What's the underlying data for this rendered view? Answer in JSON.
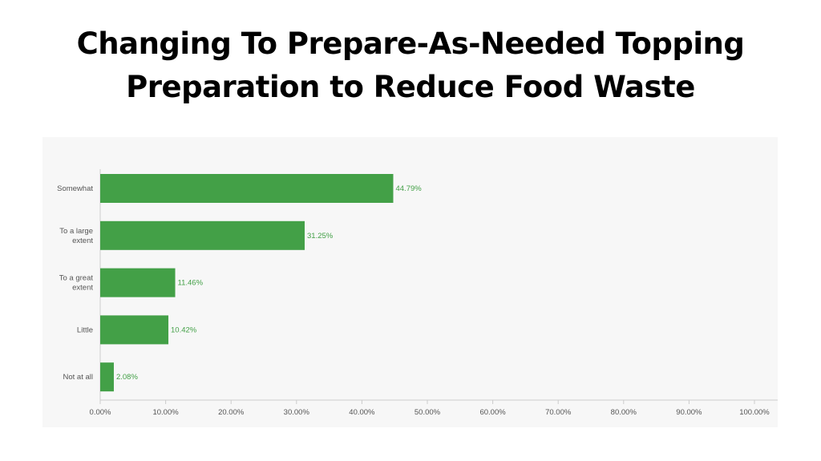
{
  "title": {
    "line1": "Changing To Prepare-As-Needed Topping",
    "line2": "Preparation to Reduce Food Waste"
  },
  "colors": {
    "bar": "#43a047",
    "value_label": "#43a047",
    "axis_line": "#cccccc",
    "panel_bg": "#f7f7f7"
  },
  "chart_data": {
    "type": "bar",
    "orientation": "horizontal",
    "categories": [
      [
        "Somewhat"
      ],
      [
        "To a large",
        "extent"
      ],
      [
        "To a great",
        "extent"
      ],
      [
        "Little"
      ],
      [
        "Not at all"
      ]
    ],
    "values": [
      44.79,
      31.25,
      11.46,
      10.42,
      2.08
    ],
    "value_labels": [
      "44.79%",
      "31.25%",
      "11.46%",
      "10.42%",
      "2.08%"
    ],
    "xlim": [
      0,
      100
    ],
    "x_ticks": [
      "0.00%",
      "10.00%",
      "20.00%",
      "30.00%",
      "40.00%",
      "50.00%",
      "60.00%",
      "70.00%",
      "80.00%",
      "90.00%",
      "100.00%"
    ],
    "grid": false,
    "legend": "none"
  }
}
